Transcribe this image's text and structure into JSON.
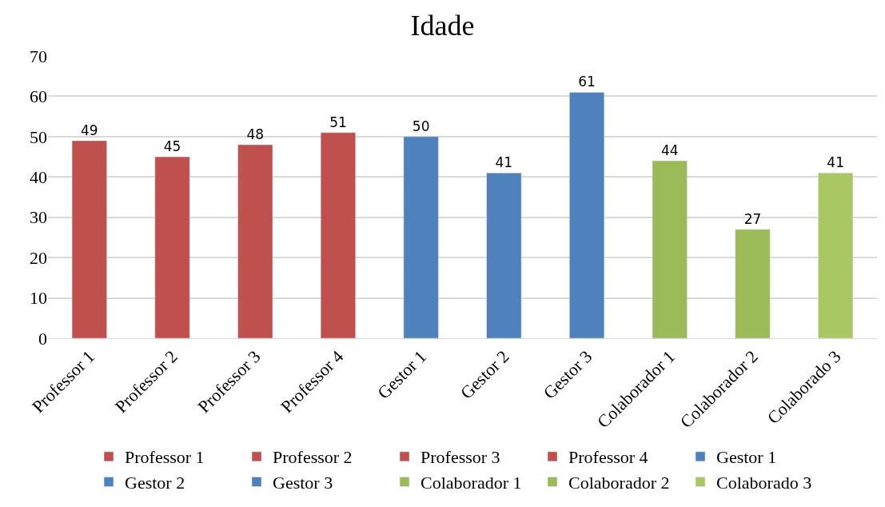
{
  "chart_data": {
    "type": "bar",
    "title": "Idade",
    "categories": [
      "Professor 1",
      "Professor 2",
      "Professor 3",
      "Professor 4",
      "Gestor 1",
      "Gestor 2",
      "Gestor 3",
      "Colaborador 1",
      "Colaborador 2",
      "Colaborado 3"
    ],
    "series": [
      {
        "name": "Professor 1",
        "color": "#c0504d",
        "values": [
          49,
          null,
          null,
          null,
          null,
          null,
          null,
          null,
          null,
          null
        ]
      },
      {
        "name": "Professor 2",
        "color": "#c0504d",
        "values": [
          null,
          45,
          null,
          null,
          null,
          null,
          null,
          null,
          null,
          null
        ]
      },
      {
        "name": "Professor 3",
        "color": "#c0504d",
        "values": [
          null,
          null,
          48,
          null,
          null,
          null,
          null,
          null,
          null,
          null
        ]
      },
      {
        "name": "Professor 4",
        "color": "#c0504d",
        "values": [
          null,
          null,
          null,
          51,
          null,
          null,
          null,
          null,
          null,
          null
        ]
      },
      {
        "name": "Gestor 1",
        "color": "#4f81bd",
        "values": [
          null,
          null,
          null,
          null,
          50,
          null,
          null,
          null,
          null,
          null
        ]
      },
      {
        "name": "Gestor 2",
        "color": "#4f81bd",
        "values": [
          null,
          null,
          null,
          null,
          null,
          41,
          null,
          null,
          null,
          null
        ]
      },
      {
        "name": "Gestor 3",
        "color": "#4f81bd",
        "values": [
          null,
          null,
          null,
          null,
          null,
          null,
          61,
          null,
          null,
          null
        ]
      },
      {
        "name": "Colaborador 1",
        "color": "#9bbb59",
        "values": [
          null,
          null,
          null,
          null,
          null,
          null,
          null,
          44,
          null,
          null
        ]
      },
      {
        "name": "Colaborador 2",
        "color": "#9bbb59",
        "values": [
          null,
          null,
          null,
          null,
          null,
          null,
          null,
          null,
          27,
          null
        ]
      },
      {
        "name": "Colaborado 3",
        "color": "#a9c864",
        "values": [
          null,
          null,
          null,
          null,
          null,
          null,
          null,
          null,
          null,
          41
        ]
      }
    ],
    "ylim": [
      0,
      70
    ],
    "yticks": [
      0,
      10,
      20,
      30,
      40,
      50,
      60,
      70
    ],
    "grid": "y",
    "legend": "bottom",
    "data_labels": true
  }
}
